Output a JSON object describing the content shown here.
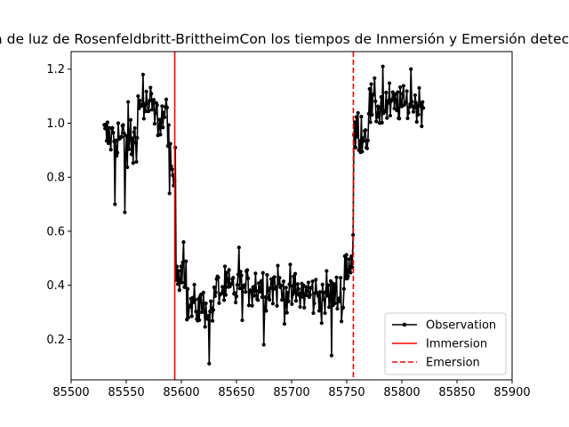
{
  "chart_data": {
    "type": "line",
    "title": "Curva de luz de Rosenfeldbritt-BrittheimCon los tiempos de Inmersión y Emersión detectados",
    "xlabel": "",
    "ylabel": "",
    "xlim": [
      85500,
      85900
    ],
    "ylim": [
      0.05,
      1.265
    ],
    "xticks": [
      85500,
      85550,
      85600,
      85650,
      85700,
      85750,
      85800,
      85850,
      85900
    ],
    "yticks": [
      0.2,
      0.4,
      0.6,
      0.8,
      1.0,
      1.2
    ],
    "xtick_labels": [
      "85500",
      "85550",
      "85600",
      "85650",
      "85700",
      "85750",
      "85800",
      "85850",
      "85900"
    ],
    "ytick_labels": [
      "0.2",
      "0.4",
      "0.6",
      "0.8",
      "1.0",
      "1.2"
    ],
    "grid": false,
    "legend_position": "lower right",
    "series": [
      {
        "name": "Observation",
        "color": "#000000",
        "style": "line-with-dot-markers",
        "sampling": {
          "x_start": 85530,
          "x_end": 85820,
          "step": 0.75
        },
        "levels": [
          {
            "x_from": 85530,
            "x_to": 85545,
            "mean": 0.95,
            "noise": 0.08
          },
          {
            "x_from": 85545,
            "x_to": 85560,
            "mean": 0.93,
            "noise": 0.12
          },
          {
            "x_from": 85560,
            "x_to": 85575,
            "mean": 1.06,
            "noise": 0.08
          },
          {
            "x_from": 85575,
            "x_to": 85590,
            "mean": 1.02,
            "noise": 0.09
          },
          {
            "x_from": 85590,
            "x_to": 85595,
            "mean": 0.8,
            "noise": 0.1
          },
          {
            "x_from": 85595,
            "x_to": 85605,
            "mean": 0.46,
            "noise": 0.07
          },
          {
            "x_from": 85605,
            "x_to": 85630,
            "mean": 0.32,
            "noise": 0.07
          },
          {
            "x_from": 85630,
            "x_to": 85660,
            "mean": 0.38,
            "noise": 0.08
          },
          {
            "x_from": 85660,
            "x_to": 85690,
            "mean": 0.4,
            "noise": 0.08
          },
          {
            "x_from": 85690,
            "x_to": 85720,
            "mean": 0.37,
            "noise": 0.08
          },
          {
            "x_from": 85720,
            "x_to": 85748,
            "mean": 0.36,
            "noise": 0.08
          },
          {
            "x_from": 85748,
            "x_to": 85756,
            "mean": 0.48,
            "noise": 0.1
          },
          {
            "x_from": 85756,
            "x_to": 85770,
            "mean": 0.97,
            "noise": 0.08
          },
          {
            "x_from": 85770,
            "x_to": 85790,
            "mean": 1.06,
            "noise": 0.08
          },
          {
            "x_from": 85790,
            "x_to": 85820,
            "mean": 1.07,
            "noise": 0.06
          }
        ],
        "extremes": [
          {
            "x": 85540,
            "y": 0.7
          },
          {
            "x": 85549,
            "y": 0.67
          },
          {
            "x": 85565,
            "y": 1.18
          },
          {
            "x": 85589,
            "y": 0.74
          },
          {
            "x": 85602,
            "y": 0.56
          },
          {
            "x": 85625,
            "y": 0.11
          },
          {
            "x": 85652,
            "y": 0.54
          },
          {
            "x": 85675,
            "y": 0.18
          },
          {
            "x": 85736,
            "y": 0.14
          },
          {
            "x": 85783,
            "y": 1.21
          },
          {
            "x": 85808,
            "y": 1.2
          }
        ]
      },
      {
        "name": "Immersion",
        "color": "#ff0000",
        "style": "solid-vertical",
        "x": 85594
      },
      {
        "name": "Emersion",
        "color": "#ff0000",
        "style": "dashed-vertical",
        "x": 85756
      }
    ]
  }
}
